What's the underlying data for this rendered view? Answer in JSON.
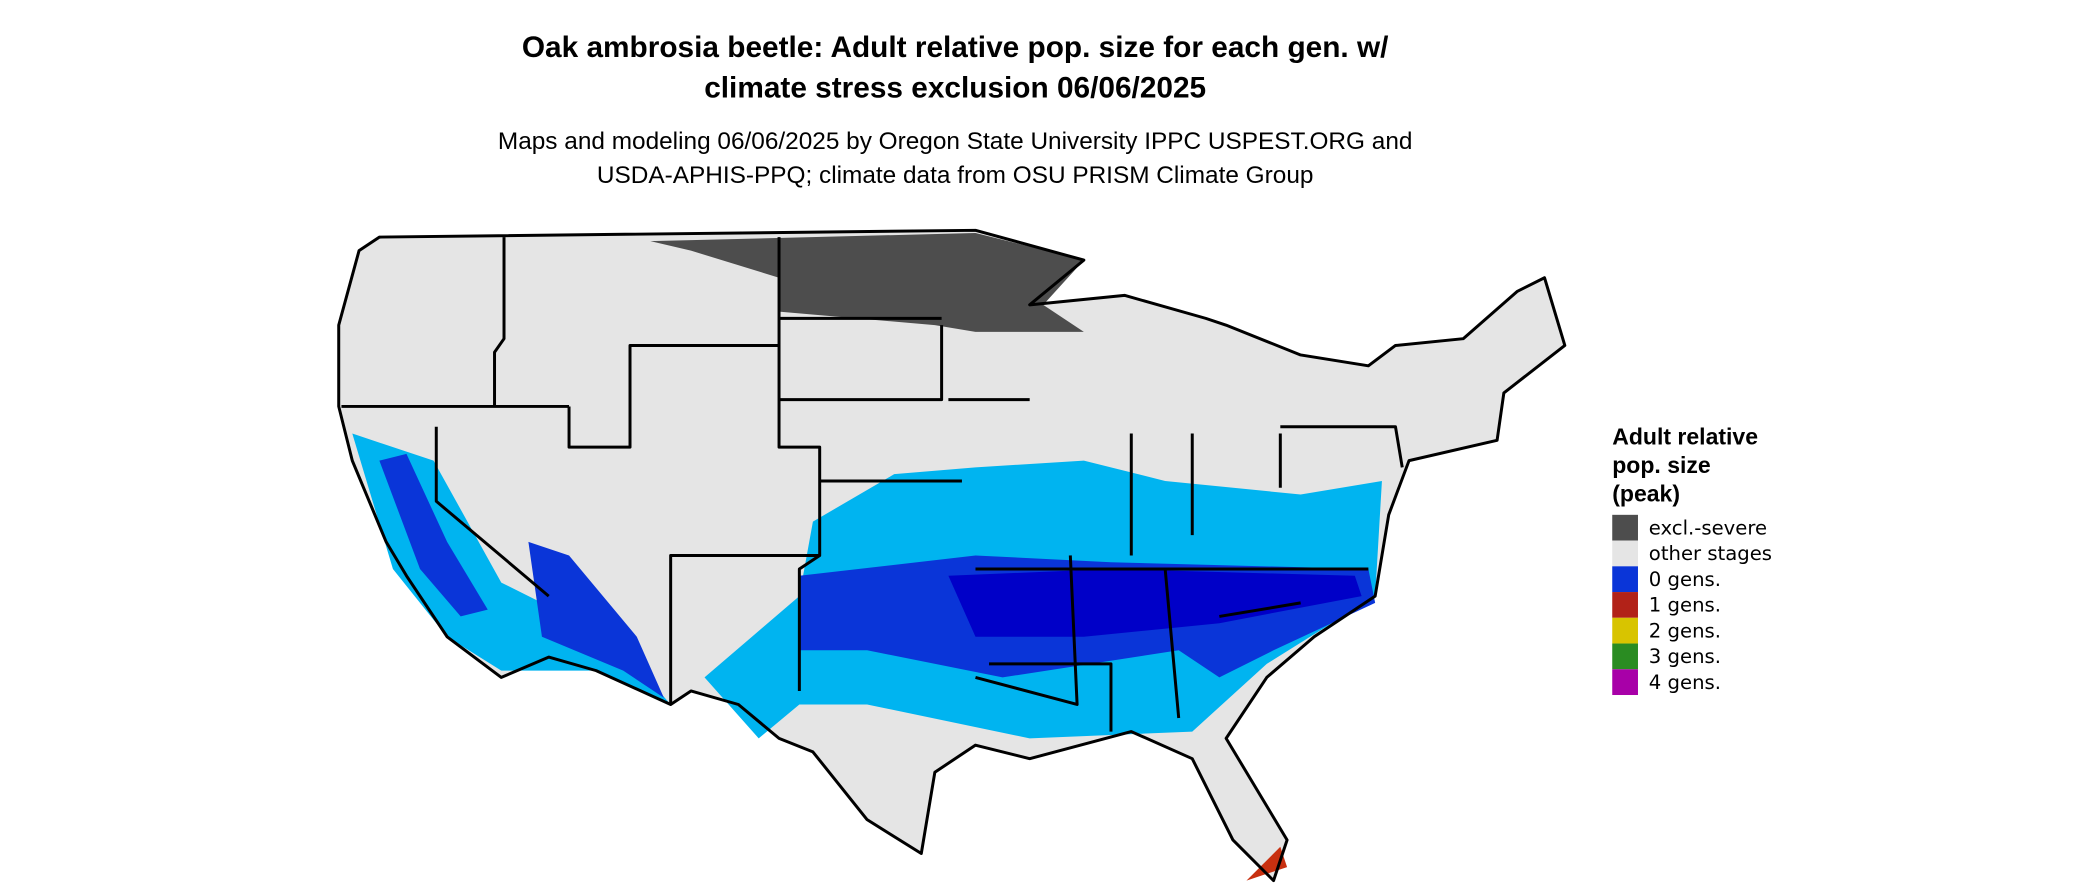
{
  "title": [
    "Oak ambrosia beetle: Adult relative pop. size for each gen. w/",
    "climate stress exclusion 06/06/2025"
  ],
  "subtitle": [
    "Maps and modeling 06/06/2025 by Oregon State University IPPC USPEST.ORG and",
    "USDA-APHIS-PPQ; climate data from OSU PRISM Climate Group"
  ],
  "legend": {
    "title": [
      "Adult relative",
      "pop. size",
      "(peak)"
    ],
    "items": [
      {
        "label": "excl.-severe",
        "color": "#4d4d4d"
      },
      {
        "label": "other stages",
        "color": "#e5e5e5"
      },
      {
        "label": "0 gens.",
        "color": "#0a35d8"
      },
      {
        "label": "1 gens.",
        "color": "#b22218"
      },
      {
        "label": "2 gens.",
        "color": "#d8c400"
      },
      {
        "label": "3 gens.",
        "color": "#2a8c22"
      },
      {
        "label": "4 gens.",
        "color": "#a800a8"
      }
    ]
  }
}
